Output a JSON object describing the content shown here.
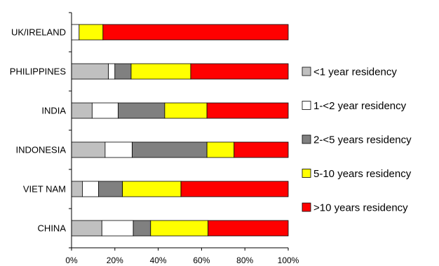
{
  "chart_data": {
    "type": "bar",
    "orientation": "horizontal",
    "stacked": true,
    "percent_stacked": true,
    "categories": [
      "UK/IRELAND",
      "PHILIPPINES",
      "INDIA",
      "INDONESIA",
      "VIET NAM",
      "CHINA"
    ],
    "series": [
      {
        "name": "<1 year residency",
        "color": "#c0c0c0",
        "values": [
          0,
          17,
          9.5,
          15.5,
          5,
          14
        ]
      },
      {
        "name": "1-<2 year residency",
        "color": "#ffffff",
        "values": [
          3.5,
          3,
          12,
          12.5,
          7.5,
          14.5
        ]
      },
      {
        "name": "2-<5 years residency",
        "color": "#808080",
        "values": [
          0,
          7.5,
          21.5,
          34.5,
          11,
          8
        ]
      },
      {
        "name": "5-10 years residency",
        "color": "#ffff00",
        "values": [
          11,
          27.5,
          19.5,
          12.5,
          27,
          26.5
        ]
      },
      {
        "name": ">10 years residency",
        "color": "#ff0000",
        "values": [
          85.5,
          45,
          37.5,
          25,
          49.5,
          37
        ]
      }
    ],
    "x_ticks": [
      "0%",
      "20%",
      "40%",
      "60%",
      "80%",
      "100%"
    ],
    "xlim": [
      0,
      100
    ],
    "xlabel": "",
    "ylabel": "",
    "title": "",
    "legend": "right",
    "grid": false
  }
}
